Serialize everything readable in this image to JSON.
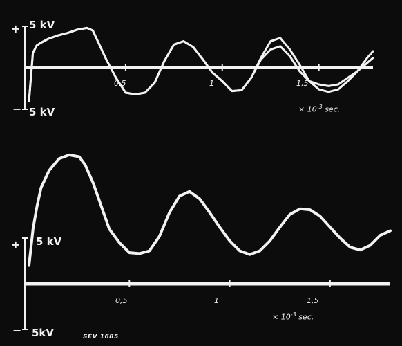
{
  "figure": {
    "reference": "SEV 1685"
  },
  "chart_data": [
    {
      "type": "line",
      "panel": "top",
      "series_count": 2,
      "y_label_top": "5 kV",
      "y_label_bottom": "5 kV",
      "plus_sign": "+",
      "minus_sign": "−",
      "x_ticks": [
        "0,5",
        "1",
        "1,5"
      ],
      "x_tick_values": [
        0.5,
        1.0,
        1.5
      ],
      "x_unit_prefix": "× 10",
      "x_unit_exp": "-3",
      "x_unit_suffix": "sec.",
      "xlim": [
        0,
        1.78
      ],
      "ylim": [
        -5,
        5
      ],
      "series": [
        {
          "x": [
            0,
            0.02,
            0.04,
            0.06,
            0.1,
            0.15,
            0.2,
            0.25,
            0.3,
            0.33,
            0.36,
            0.4,
            0.45,
            0.5,
            0.55,
            0.6,
            0.65,
            0.7,
            0.75,
            0.8,
            0.85,
            0.9,
            0.95,
            1.0,
            1.05,
            1.1,
            1.15,
            1.2,
            1.25,
            1.3,
            1.35,
            1.4,
            1.45,
            1.5,
            1.55,
            1.6,
            1.65,
            1.7,
            1.75,
            1.78
          ],
          "y": [
            -4.0,
            1.8,
            2.7,
            3.0,
            3.5,
            3.9,
            4.2,
            4.6,
            4.8,
            4.5,
            3.0,
            1.0,
            -1.2,
            -3.0,
            -3.2,
            -3.0,
            -1.8,
            0.8,
            2.8,
            3.2,
            2.5,
            1.0,
            -0.6,
            -1.6,
            -2.8,
            -2.7,
            -1.2,
            1.2,
            3.2,
            3.6,
            2.2,
            0.4,
            -1.6,
            -2.6,
            -2.9,
            -2.6,
            -1.6,
            -0.4,
            1.2,
            2.0
          ]
        },
        {
          "x": [
            0,
            0.02,
            0.04,
            0.06,
            0.1,
            0.15,
            0.2,
            0.25,
            0.3,
            0.33,
            0.36,
            0.4,
            0.45,
            0.5,
            0.55,
            0.6,
            0.65,
            0.7,
            0.75,
            0.8,
            0.85,
            0.9,
            0.95,
            1.0,
            1.05,
            1.1,
            1.15,
            1.2,
            1.25,
            1.3,
            1.35,
            1.4,
            1.45,
            1.5,
            1.55,
            1.6,
            1.65,
            1.7,
            1.75,
            1.78
          ],
          "y": [
            -4.0,
            1.8,
            2.7,
            3.0,
            3.5,
            3.9,
            4.2,
            4.6,
            4.8,
            4.5,
            3.0,
            1.0,
            -1.2,
            -3.0,
            -3.2,
            -3.0,
            -1.8,
            0.8,
            2.8,
            3.2,
            2.5,
            1.0,
            -0.6,
            -1.6,
            -2.8,
            -2.7,
            -1.2,
            1.0,
            2.2,
            2.6,
            1.4,
            -0.4,
            -1.6,
            -2.0,
            -2.2,
            -2.0,
            -1.2,
            -0.4,
            0.6,
            1.2
          ]
        }
      ]
    },
    {
      "type": "line",
      "panel": "bottom",
      "series_count": 1,
      "y_label_top": "5 kV",
      "y_label_bottom": "5kV",
      "plus_sign": "+",
      "minus_sign": "−",
      "x_ticks": [
        "0,5",
        "1",
        "1,5"
      ],
      "x_tick_values": [
        0.5,
        1.0,
        1.5
      ],
      "x_unit_prefix": "× 10",
      "x_unit_exp": "-3",
      "x_unit_suffix": "sec.",
      "xlim": [
        0,
        1.8
      ],
      "ylim": [
        -5,
        15
      ],
      "series": [
        {
          "x": [
            0,
            0.02,
            0.04,
            0.06,
            0.1,
            0.15,
            0.2,
            0.25,
            0.28,
            0.32,
            0.36,
            0.4,
            0.45,
            0.5,
            0.55,
            0.6,
            0.65,
            0.7,
            0.75,
            0.8,
            0.85,
            0.9,
            0.95,
            1.0,
            1.05,
            1.1,
            1.15,
            1.2,
            1.25,
            1.3,
            1.35,
            1.4,
            1.45,
            1.5,
            1.55,
            1.6,
            1.65,
            1.7,
            1.75,
            1.8
          ],
          "y": [
            2.0,
            6.0,
            8.5,
            10.5,
            12.4,
            13.7,
            14.1,
            13.9,
            13.0,
            11.0,
            8.5,
            6.0,
            4.5,
            3.4,
            3.3,
            3.6,
            5.2,
            7.8,
            9.6,
            10.1,
            9.3,
            7.8,
            6.2,
            4.7,
            3.6,
            3.2,
            3.6,
            4.7,
            6.2,
            7.6,
            8.2,
            8.1,
            7.4,
            6.2,
            5.0,
            4.0,
            3.7,
            4.2,
            5.3,
            5.8
          ]
        }
      ]
    }
  ],
  "colors": {
    "background": "#0c0c0c",
    "trace": "#f2f2f2"
  }
}
